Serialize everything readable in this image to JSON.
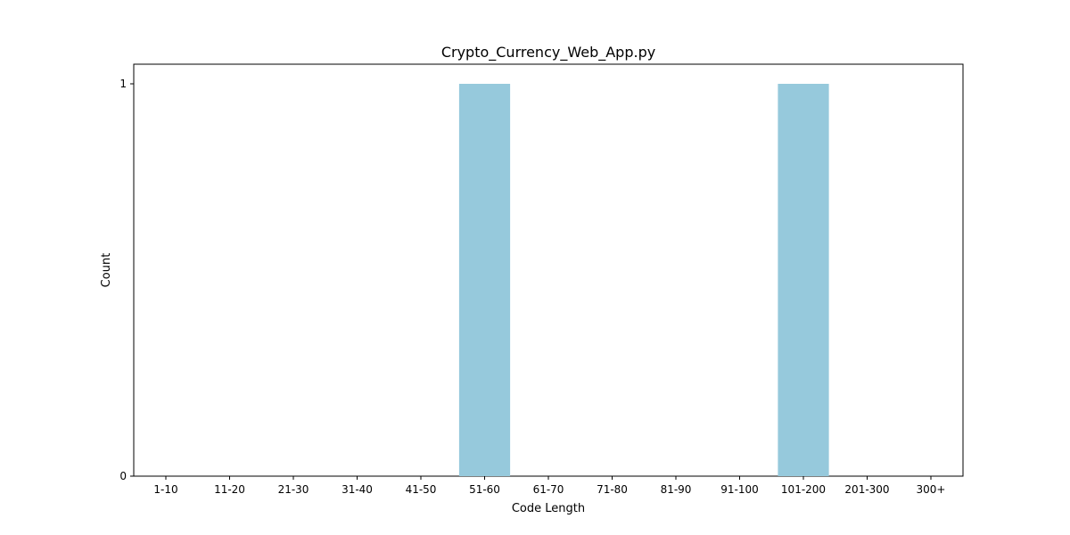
{
  "chart_data": {
    "type": "bar",
    "title": "Crypto_Currency_Web_App.py",
    "xlabel": "Code Length",
    "ylabel": "Count",
    "categories": [
      "1-10",
      "11-20",
      "21-30",
      "31-40",
      "41-50",
      "51-60",
      "61-70",
      "71-80",
      "81-90",
      "91-100",
      "101-200",
      "201-300",
      "300+"
    ],
    "values": [
      0,
      0,
      0,
      0,
      0,
      1,
      0,
      0,
      0,
      0,
      1,
      0,
      0
    ],
    "ylim": [
      0,
      1
    ],
    "yticks": [
      0,
      1
    ],
    "grid": false,
    "bar_color": "#96c9dc"
  }
}
